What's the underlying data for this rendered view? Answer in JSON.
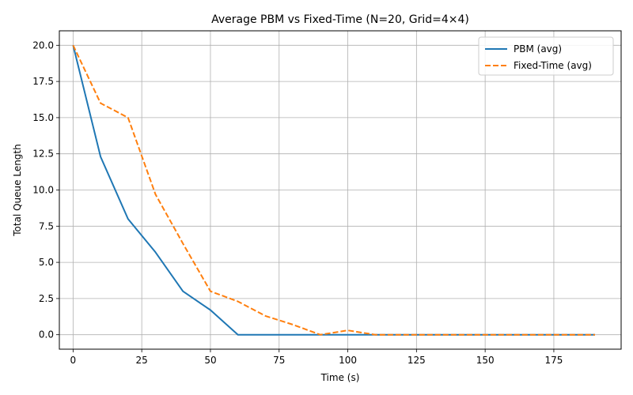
{
  "chart_data": {
    "type": "line",
    "title": "Average PBM vs Fixed-Time (N=20, Grid=4×4)",
    "xlabel": "Time (s)",
    "ylabel": "Total Queue Length",
    "xlim": [
      -5,
      199.5
    ],
    "ylim": [
      -1,
      21
    ],
    "xticks": [
      0,
      25,
      50,
      75,
      100,
      125,
      150,
      175
    ],
    "xtick_labels": [
      "0",
      "25",
      "50",
      "75",
      "100",
      "125",
      "150",
      "175"
    ],
    "yticks": [
      0,
      2.5,
      5,
      7.5,
      10,
      12.5,
      15,
      17.5,
      20
    ],
    "ytick_labels": [
      "0.0",
      "2.5",
      "5.0",
      "7.5",
      "10.0",
      "12.5",
      "15.0",
      "17.5",
      "20.0"
    ],
    "grid": true,
    "legend_position": "top-right",
    "x": [
      0,
      10,
      20,
      30,
      40,
      50,
      60,
      70,
      80,
      90,
      100,
      110,
      120,
      130,
      140,
      150,
      160,
      170,
      180,
      190
    ],
    "series": [
      {
        "name": "PBM (avg)",
        "style": "solid",
        "color": "#1f77b4",
        "values": [
          20,
          12.3,
          8.0,
          5.7,
          3.0,
          1.7,
          0,
          0,
          0,
          0,
          0,
          0,
          0,
          0,
          0,
          0,
          0,
          0,
          0,
          0
        ]
      },
      {
        "name": "Fixed-Time (avg)",
        "style": "dashed",
        "color": "#ff7f0e",
        "values": [
          20,
          16.0,
          15.0,
          9.7,
          6.3,
          3.0,
          2.3,
          1.3,
          0.7,
          0,
          0.3,
          0,
          0,
          0,
          0,
          0,
          0,
          0,
          0,
          0
        ]
      }
    ]
  }
}
